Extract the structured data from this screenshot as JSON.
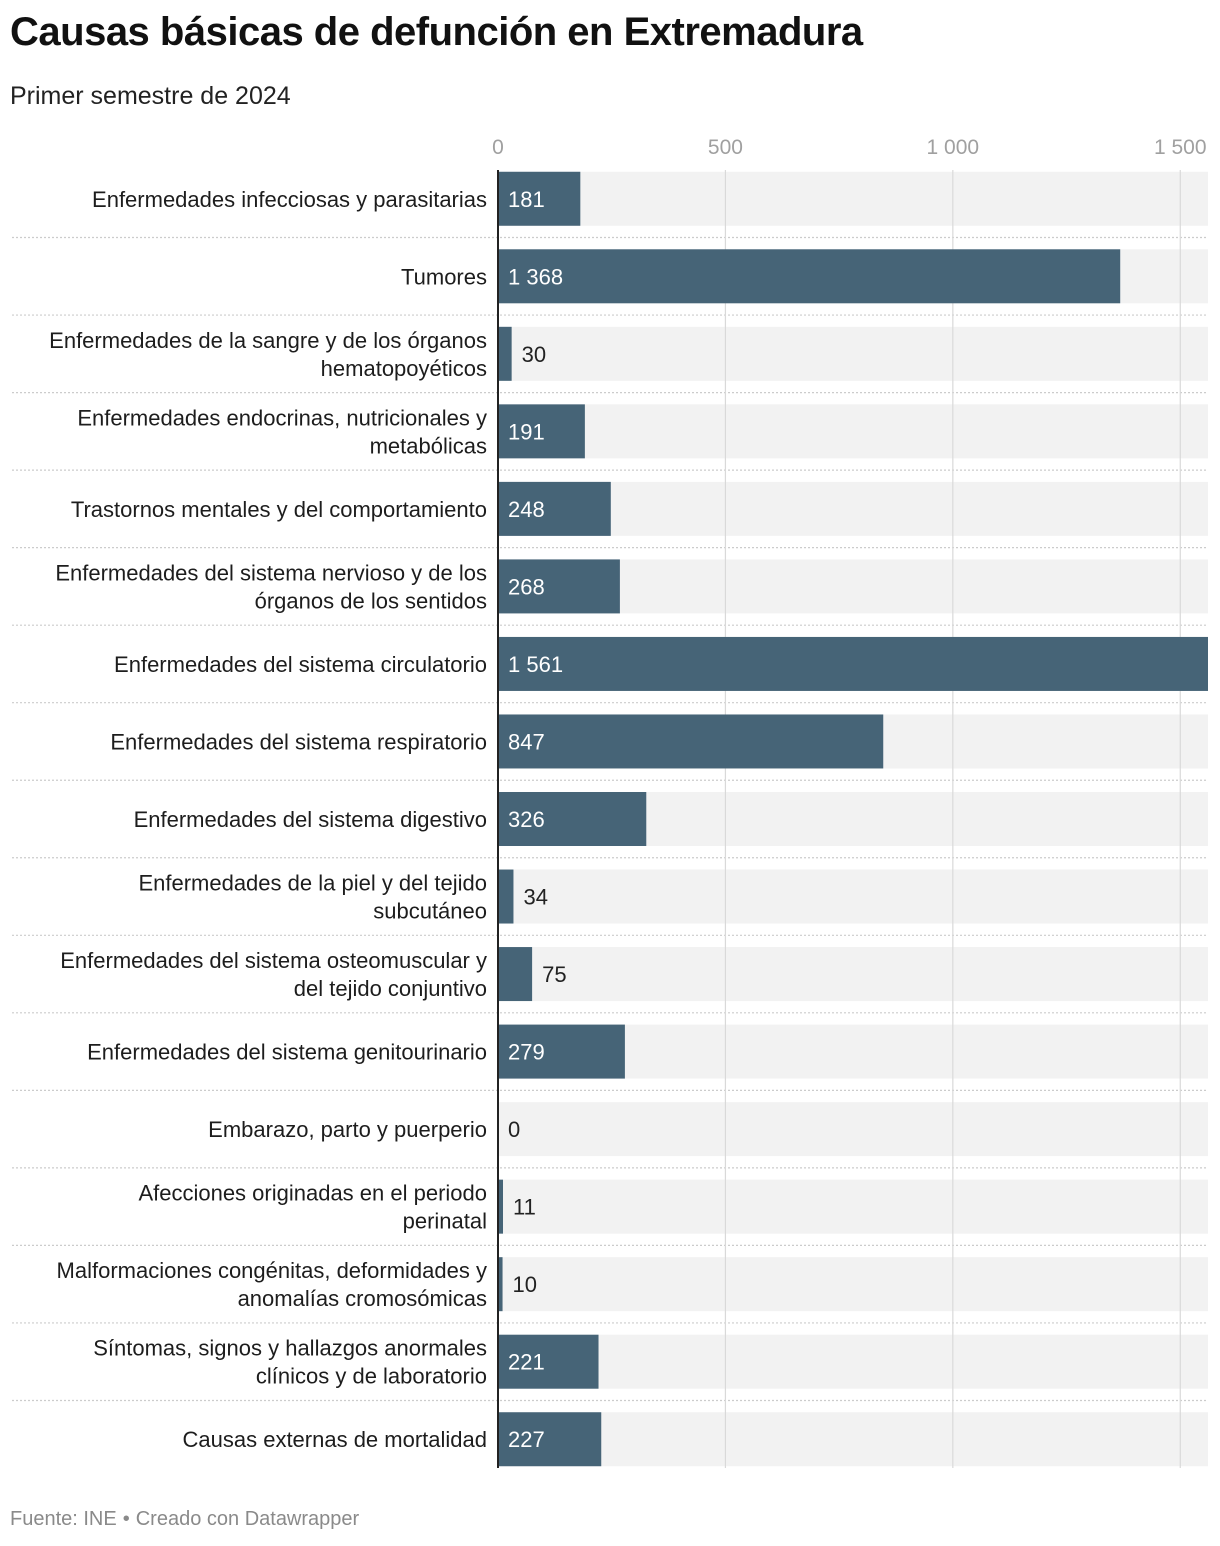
{
  "header": {
    "title": "Causas básicas de defunción en Extremadura",
    "subtitle": "Primer semestre de 2024"
  },
  "footer": {
    "source": "Fuente: INE",
    "separator": "•",
    "credit": "Creado con Datawrapper"
  },
  "colors": {
    "bar": "#466477",
    "track": "#f2f2f2",
    "grid": "#d9d9d9",
    "axis": "#222222",
    "tick_text": "#a0a0a0",
    "label_inside": "#ffffff",
    "label_outside": "#222222",
    "separator": "#cccccc"
  },
  "chart_data": {
    "type": "bar",
    "orientation": "horizontal",
    "title": "Causas básicas de defunción en Extremadura",
    "subtitle": "Primer semestre de 2024",
    "xlim": [
      0,
      1561
    ],
    "ticks": [
      {
        "value": 0,
        "label": "0"
      },
      {
        "value": 500,
        "label": "500"
      },
      {
        "value": 1000,
        "label": "1 000"
      },
      {
        "value": 1500,
        "label": "1 500"
      }
    ],
    "categories": [
      [
        "Enfermedades infecciosas y parasitarias"
      ],
      [
        "Tumores"
      ],
      [
        "Enfermedades de la sangre y de los órganos",
        "hematopoyéticos"
      ],
      [
        "Enfermedades endocrinas, nutricionales y",
        "metabólicas"
      ],
      [
        "Trastornos mentales y del comportamiento"
      ],
      [
        "Enfermedades del sistema nervioso y de los",
        "órganos de los sentidos"
      ],
      [
        "Enfermedades del sistema circulatorio"
      ],
      [
        "Enfermedades del sistema respiratorio"
      ],
      [
        "Enfermedades del sistema digestivo"
      ],
      [
        "Enfermedades de la piel y del tejido",
        "subcutáneo"
      ],
      [
        "Enfermedades del sistema osteomuscular y",
        "del tejido conjuntivo"
      ],
      [
        "Enfermedades del sistema genitourinario"
      ],
      [
        "Embarazo, parto y puerperio"
      ],
      [
        "Afecciones originadas en el periodo",
        "perinatal"
      ],
      [
        "Malformaciones congénitas, deformidades y",
        "anomalías cromosómicas"
      ],
      [
        "Síntomas, signos y hallazgos anormales",
        "clínicos y de laboratorio"
      ],
      [
        "Causas externas de mortalidad"
      ]
    ],
    "values": [
      181,
      1368,
      30,
      191,
      248,
      268,
      1561,
      847,
      326,
      34,
      75,
      279,
      0,
      11,
      10,
      221,
      227
    ],
    "value_labels": [
      "181",
      "1 368",
      "30",
      "191",
      "248",
      "268",
      "1 561",
      "847",
      "326",
      "34",
      "75",
      "279",
      "0",
      "11",
      "10",
      "221",
      "227"
    ]
  }
}
